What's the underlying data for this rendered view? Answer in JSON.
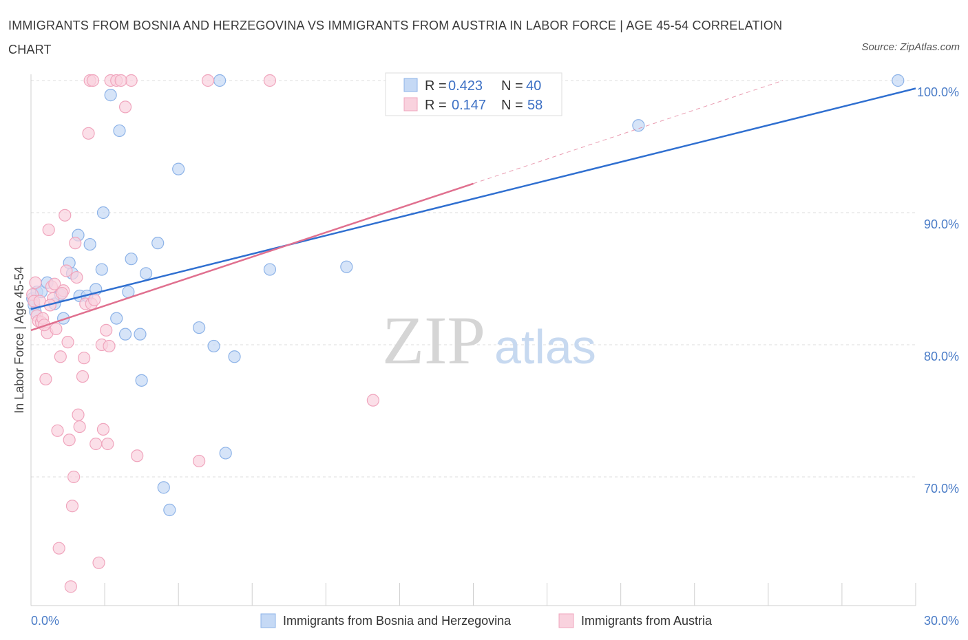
{
  "title": "IMMIGRANTS FROM BOSNIA AND HERZEGOVINA VS IMMIGRANTS FROM AUSTRIA IN LABOR FORCE | AGE 45-54 CORRELATION CHART",
  "source": "Source: ZipAtlas.com",
  "watermark": {
    "zip": "ZIP",
    "atlas": "atlas"
  },
  "chart_data": {
    "type": "scatter",
    "title": "IMMIGRANTS FROM BOSNIA AND HERZEGOVINA VS IMMIGRANTS FROM AUSTRIA IN LABOR FORCE | AGE 45-54 CORRELATION CHART",
    "xlabel": "",
    "ylabel": "In Labor Force | Age 45-54",
    "xlim": [
      0,
      30
    ],
    "ylim": [
      60,
      100
    ],
    "x_tick_labels": [
      "0.0%",
      "30.0%"
    ],
    "y_ticks": [
      70,
      80,
      90,
      100
    ],
    "y_tick_labels": [
      "70.0%",
      "80.0%",
      "90.0%",
      "100.0%"
    ],
    "legend_stats": [
      {
        "r_label": "R =",
        "r": "0.423",
        "n_label": "N =",
        "n": "40"
      },
      {
        "r_label": "R =",
        "r": "0.147",
        "n_label": "N =",
        "n": "58"
      }
    ],
    "series": [
      {
        "name": "Immigrants from Bosnia and Herzegovina",
        "color": "#8db3e8",
        "fill": "#c5d9f5",
        "line_color": "#2f6fd0",
        "trend": {
          "x0": 0,
          "y0": 82.7,
          "x1": 30,
          "y1": 99.4
        },
        "points": [
          [
            0.05,
            83.5
          ],
          [
            0.1,
            83.0
          ],
          [
            0.15,
            82.5
          ],
          [
            0.2,
            84.0
          ],
          [
            0.35,
            84.0
          ],
          [
            0.55,
            84.7
          ],
          [
            0.8,
            83.1
          ],
          [
            1.0,
            83.8
          ],
          [
            1.1,
            82.0
          ],
          [
            1.3,
            86.2
          ],
          [
            1.4,
            85.4
          ],
          [
            1.6,
            88.3
          ],
          [
            1.65,
            83.7
          ],
          [
            1.9,
            83.7
          ],
          [
            2.0,
            87.6
          ],
          [
            2.2,
            84.2
          ],
          [
            2.4,
            85.7
          ],
          [
            2.45,
            90.0
          ],
          [
            2.7,
            98.9
          ],
          [
            2.9,
            82.0
          ],
          [
            3.0,
            96.2
          ],
          [
            3.2,
            80.8
          ],
          [
            3.3,
            84.0
          ],
          [
            3.4,
            86.5
          ],
          [
            3.7,
            80.8
          ],
          [
            3.75,
            77.3
          ],
          [
            3.9,
            85.4
          ],
          [
            4.3,
            87.7
          ],
          [
            4.5,
            69.2
          ],
          [
            4.7,
            67.5
          ],
          [
            5.0,
            93.3
          ],
          [
            5.7,
            81.3
          ],
          [
            6.2,
            79.9
          ],
          [
            6.4,
            100.0
          ],
          [
            6.6,
            71.8
          ],
          [
            6.9,
            79.1
          ],
          [
            8.1,
            85.7
          ],
          [
            10.7,
            85.9
          ],
          [
            20.6,
            96.6
          ],
          [
            29.4,
            100.0
          ]
        ]
      },
      {
        "name": "Immigrants from Austria",
        "color": "#f0a5bd",
        "fill": "#f9d2de",
        "line_color": "#e0708f",
        "trend": {
          "x0": 0,
          "y0": 81.1,
          "x1": 15,
          "y1": 92.2
        },
        "trend_ext": {
          "x0": 15,
          "y0": 92.2,
          "x1": 25.5,
          "y1": 100.0
        },
        "points": [
          [
            0.05,
            83.8
          ],
          [
            0.1,
            83.3
          ],
          [
            0.15,
            84.7
          ],
          [
            0.2,
            82.2
          ],
          [
            0.25,
            81.8
          ],
          [
            0.3,
            83.3
          ],
          [
            0.35,
            81.7
          ],
          [
            0.5,
            77.4
          ],
          [
            0.6,
            88.7
          ],
          [
            0.55,
            80.9
          ],
          [
            0.7,
            84.4
          ],
          [
            0.75,
            83.5
          ],
          [
            0.8,
            84.6
          ],
          [
            0.85,
            81.2
          ],
          [
            0.9,
            73.5
          ],
          [
            0.95,
            64.6
          ],
          [
            1.0,
            79.1
          ],
          [
            1.1,
            84.1
          ],
          [
            1.15,
            89.8
          ],
          [
            1.2,
            85.6
          ],
          [
            1.25,
            80.2
          ],
          [
            1.3,
            72.8
          ],
          [
            1.35,
            61.7
          ],
          [
            1.4,
            67.8
          ],
          [
            1.45,
            70.0
          ],
          [
            1.5,
            87.7
          ],
          [
            1.6,
            74.7
          ],
          [
            1.65,
            73.8
          ],
          [
            1.75,
            77.6
          ],
          [
            1.8,
            79.0
          ],
          [
            1.85,
            83.1
          ],
          [
            2.0,
            100.0
          ],
          [
            1.95,
            96.0
          ],
          [
            2.05,
            83.1
          ],
          [
            2.1,
            100.0
          ],
          [
            2.2,
            72.5
          ],
          [
            2.3,
            63.5
          ],
          [
            2.4,
            80.0
          ],
          [
            2.45,
            73.6
          ],
          [
            2.55,
            81.1
          ],
          [
            2.6,
            72.5
          ],
          [
            2.65,
            79.9
          ],
          [
            2.7,
            100.0
          ],
          [
            2.9,
            100.0
          ],
          [
            3.2,
            98.0
          ],
          [
            3.4,
            100.0
          ],
          [
            3.6,
            71.6
          ],
          [
            6.0,
            100.0
          ],
          [
            5.7,
            71.2
          ],
          [
            8.1,
            100.0
          ],
          [
            11.6,
            75.8
          ],
          [
            0.4,
            82.0
          ],
          [
            0.45,
            81.5
          ],
          [
            0.65,
            83.0
          ],
          [
            1.05,
            83.9
          ],
          [
            1.55,
            85.1
          ],
          [
            2.15,
            83.4
          ],
          [
            3.05,
            100.0
          ]
        ]
      }
    ]
  }
}
